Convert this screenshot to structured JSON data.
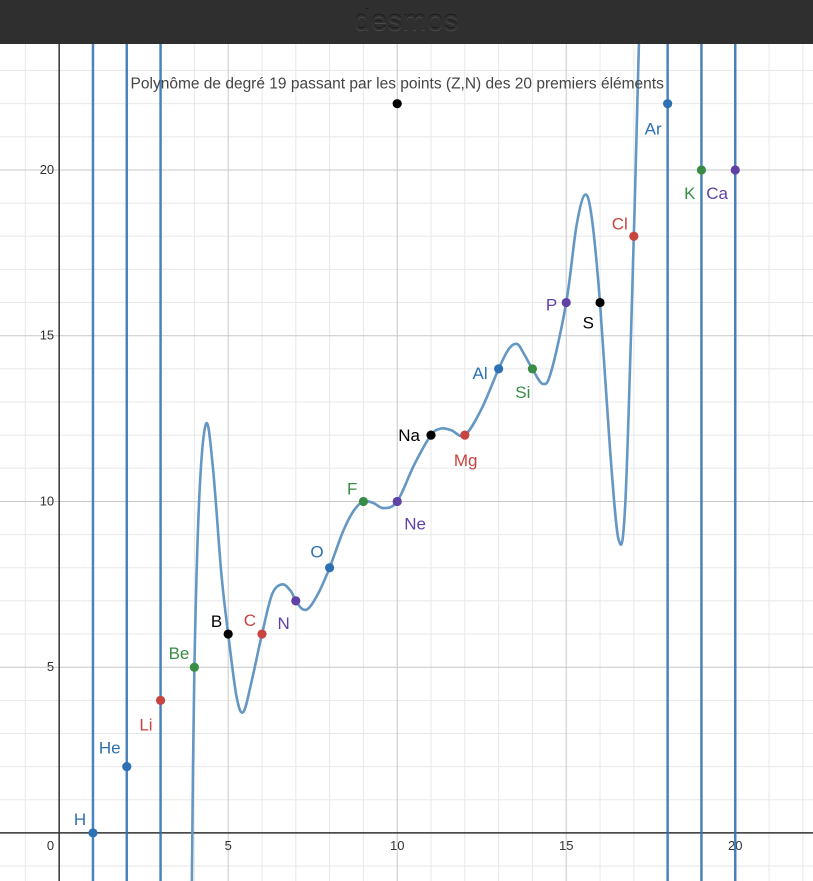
{
  "app": {
    "brand": "desmos"
  },
  "colors": {
    "blue": "#2d70b3",
    "curve": "#6497c4",
    "red": "#c74440",
    "green": "#388c46",
    "purple": "#6042a6",
    "black": "#000000"
  },
  "chart_data": {
    "type": "scatter",
    "title": "Polynôme de degré 19 passant par les points (Z,N) des 20 premiers éléments",
    "xlabel": "",
    "ylabel": "",
    "xlim": [
      -1.75,
      22.3
    ],
    "ylim": [
      -1.45,
      23.8
    ],
    "x_ticks": [
      5,
      10,
      15,
      20
    ],
    "y_ticks": [
      5,
      10,
      15,
      20
    ],
    "origin_label": "0",
    "grid": true,
    "points": [
      {
        "label": "H",
        "x": 1,
        "y": 0,
        "color": "blue"
      },
      {
        "label": "He",
        "x": 2,
        "y": 2,
        "color": "blue"
      },
      {
        "label": "Li",
        "x": 3,
        "y": 4,
        "color": "red"
      },
      {
        "label": "Be",
        "x": 4,
        "y": 5,
        "color": "green"
      },
      {
        "label": "B",
        "x": 5,
        "y": 6,
        "color": "black"
      },
      {
        "label": "C",
        "x": 6,
        "y": 6,
        "color": "red"
      },
      {
        "label": "N",
        "x": 7,
        "y": 7,
        "color": "purple"
      },
      {
        "label": "O",
        "x": 8,
        "y": 8,
        "color": "blue"
      },
      {
        "label": "F",
        "x": 9,
        "y": 10,
        "color": "green"
      },
      {
        "label": "Ne",
        "x": 10,
        "y": 10,
        "color": "purple"
      },
      {
        "label": "Na",
        "x": 11,
        "y": 12,
        "color": "black"
      },
      {
        "label": "Mg",
        "x": 12,
        "y": 12,
        "color": "red"
      },
      {
        "label": "Al",
        "x": 13,
        "y": 14,
        "color": "blue"
      },
      {
        "label": "Si",
        "x": 14,
        "y": 14,
        "color": "green"
      },
      {
        "label": "P",
        "x": 15,
        "y": 16,
        "color": "purple"
      },
      {
        "label": "S",
        "x": 16,
        "y": 16,
        "color": "black"
      },
      {
        "label": "Cl",
        "x": 17,
        "y": 18,
        "color": "red"
      },
      {
        "label": "Ar",
        "x": 18,
        "y": 22,
        "color": "blue"
      },
      {
        "label": "K",
        "x": 19,
        "y": 20,
        "color": "green"
      },
      {
        "label": "Ca",
        "x": 20,
        "y": 20,
        "color": "purple"
      }
    ],
    "extra_point": {
      "x": 10,
      "y": 22,
      "color": "black"
    },
    "vertical_lines": [
      1,
      2,
      3,
      18,
      19,
      20
    ],
    "curve": [
      [
        3.92,
        -2.0
      ],
      [
        4.0,
        5.0
      ],
      [
        4.15,
        10.2
      ],
      [
        4.35,
        12.35
      ],
      [
        4.55,
        11.0
      ],
      [
        4.8,
        7.8
      ],
      [
        5.0,
        6.0
      ],
      [
        5.25,
        4.1
      ],
      [
        5.45,
        3.65
      ],
      [
        5.7,
        4.6
      ],
      [
        6.0,
        6.0
      ],
      [
        6.3,
        7.2
      ],
      [
        6.6,
        7.5
      ],
      [
        6.85,
        7.3
      ],
      [
        7.0,
        7.0
      ],
      [
        7.2,
        6.75
      ],
      [
        7.4,
        6.8
      ],
      [
        7.7,
        7.3
      ],
      [
        8.0,
        8.0
      ],
      [
        8.4,
        9.1
      ],
      [
        8.7,
        9.7
      ],
      [
        9.0,
        10.0
      ],
      [
        9.3,
        9.95
      ],
      [
        9.6,
        9.8
      ],
      [
        10.0,
        10.0
      ],
      [
        10.5,
        11.1
      ],
      [
        11.0,
        12.0
      ],
      [
        11.3,
        12.2
      ],
      [
        11.6,
        12.15
      ],
      [
        12.0,
        12.0
      ],
      [
        12.5,
        12.8
      ],
      [
        13.0,
        14.0
      ],
      [
        13.3,
        14.6
      ],
      [
        13.55,
        14.75
      ],
      [
        13.75,
        14.45
      ],
      [
        14.0,
        14.0
      ],
      [
        14.3,
        13.55
      ],
      [
        14.55,
        13.9
      ],
      [
        15.0,
        16.0
      ],
      [
        15.3,
        18.3
      ],
      [
        15.55,
        19.25
      ],
      [
        15.75,
        18.6
      ],
      [
        16.0,
        16.0
      ],
      [
        16.3,
        11.5
      ],
      [
        16.55,
        8.85
      ],
      [
        16.75,
        10.0
      ],
      [
        17.0,
        18.0
      ],
      [
        17.15,
        23.8
      ]
    ]
  }
}
